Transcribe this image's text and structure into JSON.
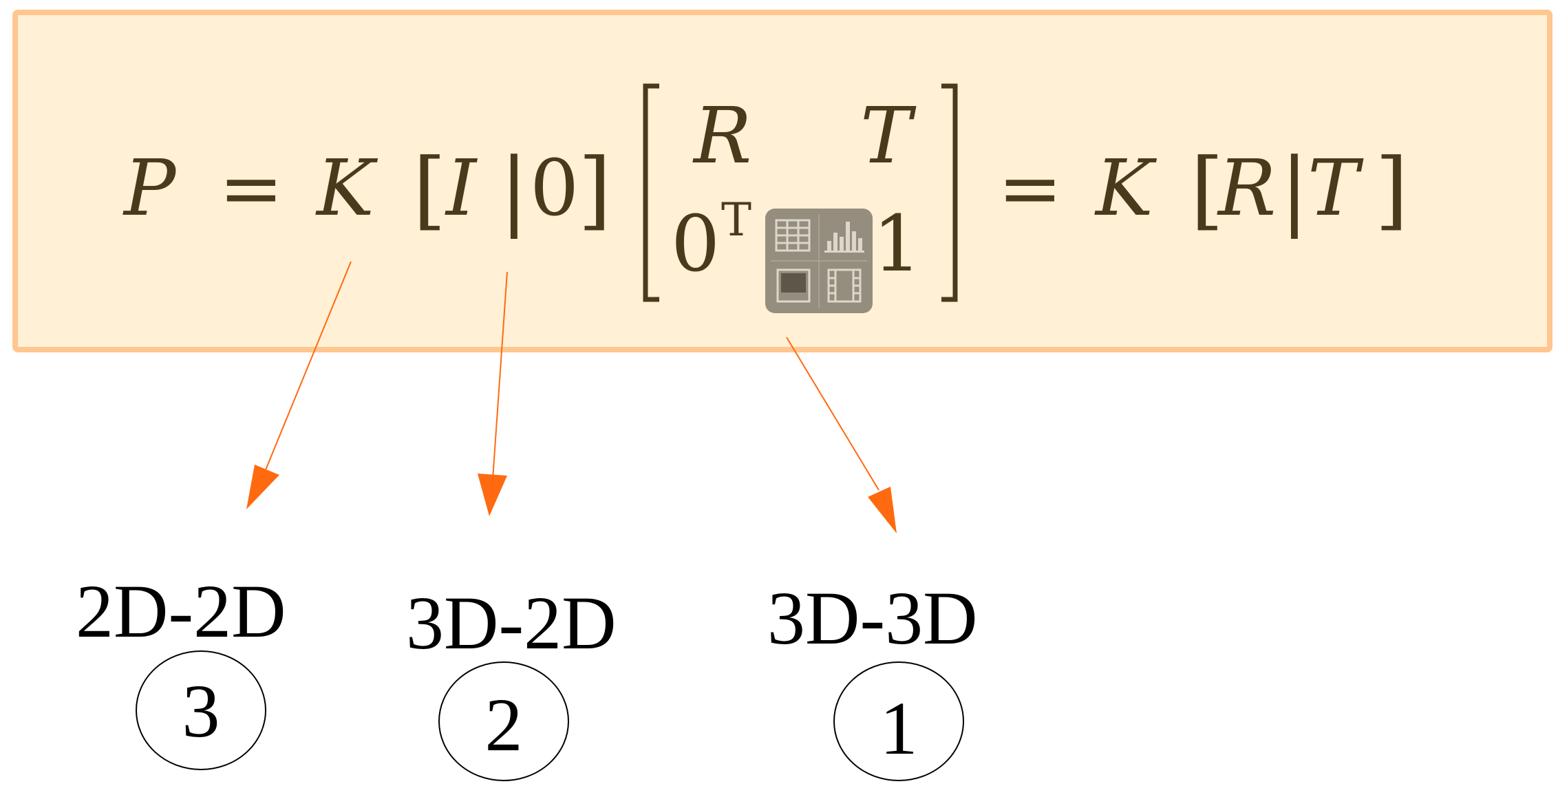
{
  "colors": {
    "equation_fill": "#fff0d6",
    "equation_border": "#ffc690",
    "arrow": "#ff6a10",
    "toolbar_bg": "#8f8778",
    "toolbar_glyph": "#dcd7cc"
  },
  "equation": {
    "lhs": "P",
    "eq1": "=",
    "k1": "K",
    "lb1": "[",
    "i": "I",
    "bar1": "|",
    "zero": "0",
    "rb1": "]",
    "m11": "R",
    "m12": "T",
    "m21": "0",
    "m21_sup": "T",
    "m22": "1",
    "eq2": "=",
    "k2": "K",
    "lb2": "[",
    "r": "R",
    "bar2": "|",
    "t": "T",
    "rb2": "]"
  },
  "toolbar": {
    "icons": [
      "table-icon",
      "chart-icon",
      "image-icon",
      "video-icon"
    ]
  },
  "labels": [
    {
      "text": "2D-2D",
      "number": "3"
    },
    {
      "text": "3D-2D",
      "number": "2"
    },
    {
      "text": "3D-3D",
      "number": "1"
    }
  ]
}
